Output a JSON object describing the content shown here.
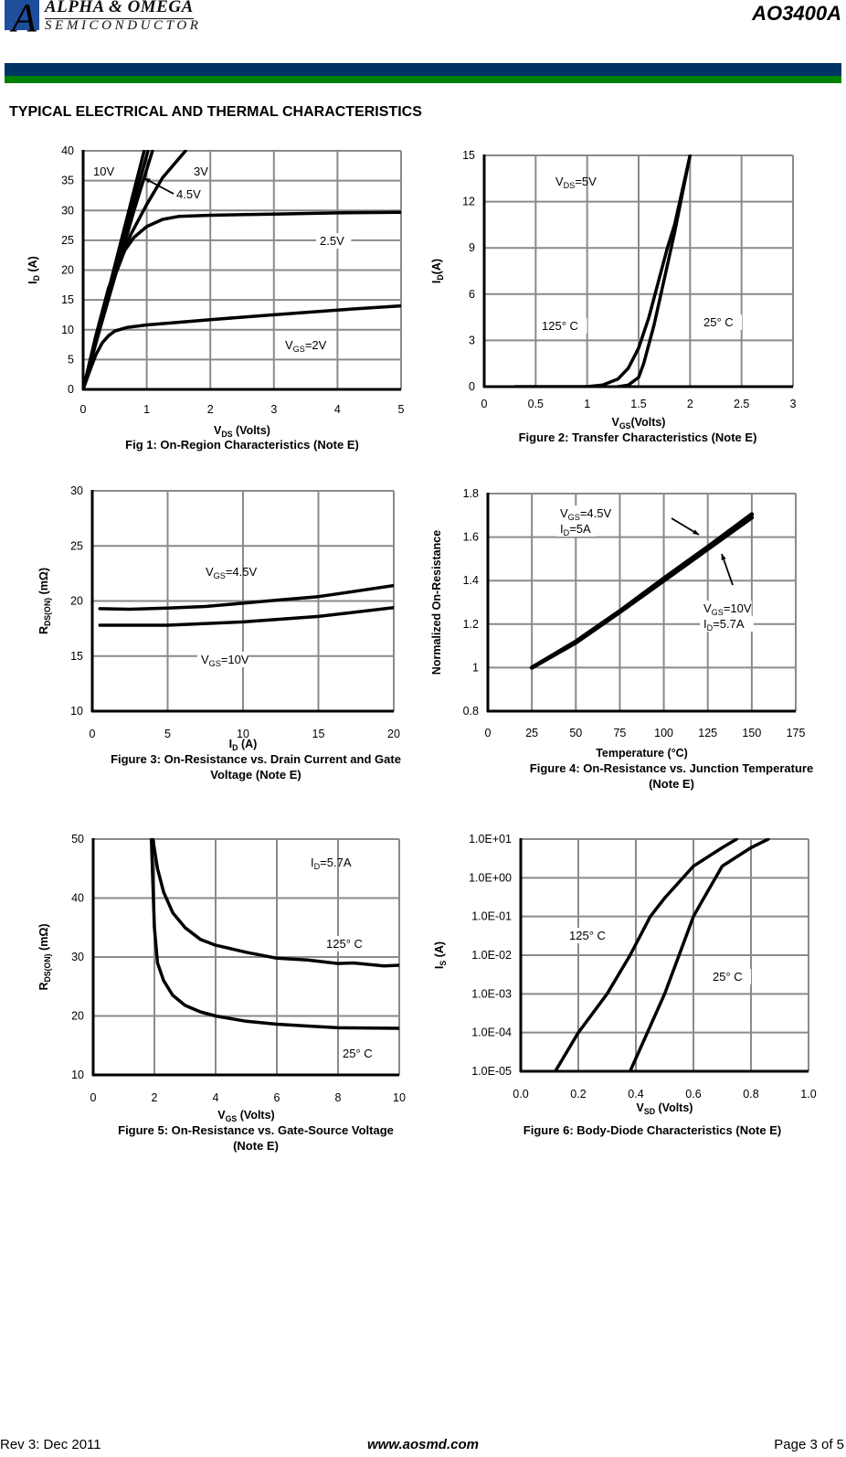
{
  "header": {
    "brand_line1": "ALPHA & OMEGA",
    "brand_line2": "SEMICONDUCTOR",
    "part_number": "AO3400A",
    "section_title": "TYPICAL ELECTRICAL AND THERMAL CHARACTERISTICS",
    "colors": {
      "bar_top": "#003366",
      "bar_bottom": "#008000",
      "logo": "#1f4e9c"
    }
  },
  "footer": {
    "revision": "Rev 3: Dec 2011",
    "website": "www.aosmd.com",
    "page": "Page 3 of 5"
  },
  "chart_data": [
    {
      "type": "line",
      "title": [
        "Fig 1: On-Region Characteristics (Note E)"
      ],
      "xlabel": {
        "pre": "V",
        "sub": "DS",
        "post": " (Volts)"
      },
      "ylabel": {
        "pre": "I",
        "sub": "D",
        "post": " (A)"
      },
      "xlim": [
        0,
        5
      ],
      "ylim": [
        0,
        40
      ],
      "yscale": "linear",
      "grid": true,
      "xticks": [
        "0",
        "1",
        "2",
        "3",
        "4",
        "5"
      ],
      "yticks": [
        "0",
        "5",
        "10",
        "15",
        "20",
        "25",
        "30",
        "35",
        "40"
      ],
      "annotations": [
        {
          "pre": "10V"
        },
        {
          "pre": "3V"
        },
        {
          "pre": "4.5V"
        },
        {
          "pre": "2.5V"
        },
        {
          "pre": "V",
          "sub": "GS",
          "post": "=2V"
        }
      ],
      "series": [
        {
          "points": [
            [
              0,
              0
            ],
            [
              0.24,
              10
            ],
            [
              0.48,
              20
            ],
            [
              0.72,
              30
            ],
            [
              0.96,
              40
            ]
          ]
        },
        {
          "points": [
            [
              0,
              0
            ],
            [
              0.25,
              10
            ],
            [
              0.5,
              20
            ],
            [
              0.76,
              30
            ],
            [
              1.02,
              40
            ]
          ]
        },
        {
          "points": [
            [
              0,
              0
            ],
            [
              0.26,
              10
            ],
            [
              0.53,
              20
            ],
            [
              0.8,
              30
            ],
            [
              1.09,
              40
            ]
          ]
        },
        {
          "points": [
            [
              0,
              0
            ],
            [
              0.25,
              10
            ],
            [
              0.5,
              19
            ],
            [
              0.75,
              26
            ],
            [
              1,
              31
            ],
            [
              1.25,
              35.5
            ],
            [
              1.61,
              40
            ]
          ]
        },
        {
          "points": [
            [
              0,
              0
            ],
            [
              0.2,
              9
            ],
            [
              0.4,
              17
            ],
            [
              0.6,
              22.5
            ],
            [
              0.8,
              25.5
            ],
            [
              1,
              27.3
            ],
            [
              1.25,
              28.5
            ],
            [
              1.5,
              29
            ],
            [
              2,
              29.2
            ],
            [
              3,
              29.4
            ],
            [
              4,
              29.6
            ],
            [
              5,
              29.7
            ]
          ]
        },
        {
          "points": [
            [
              0,
              0
            ],
            [
              0.1,
              3
            ],
            [
              0.2,
              5.8
            ],
            [
              0.3,
              7.8
            ],
            [
              0.4,
              9
            ],
            [
              0.5,
              9.8
            ],
            [
              0.7,
              10.4
            ],
            [
              1,
              10.8
            ],
            [
              2,
              11.7
            ],
            [
              3,
              12.5
            ],
            [
              4,
              13.3
            ],
            [
              5,
              14
            ]
          ]
        }
      ]
    },
    {
      "type": "line",
      "title": [
        "Figure 2: Transfer Characteristics (Note E)"
      ],
      "xlabel": {
        "pre": "V",
        "sub": "GS",
        "post": "(Volts)"
      },
      "ylabel": {
        "pre": "I",
        "sub": "D",
        "post": "(A)"
      },
      "xlim": [
        0,
        3
      ],
      "ylim": [
        0,
        15
      ],
      "yscale": "linear",
      "grid": true,
      "xticks": [
        "0",
        "0.5",
        "1",
        "1.5",
        "2",
        "2.5",
        "3"
      ],
      "yticks": [
        "0",
        "3",
        "6",
        "9",
        "12",
        "15"
      ],
      "annotations": [
        {
          "pre": "V",
          "sub": "DS",
          "post": "=5V"
        },
        {
          "pre": "125° C"
        },
        {
          "pre": "25° C"
        }
      ],
      "series": [
        {
          "points": [
            [
              0.3,
              0
            ],
            [
              1.0,
              0
            ],
            [
              1.15,
              0.1
            ],
            [
              1.3,
              0.5
            ],
            [
              1.4,
              1.2
            ],
            [
              1.5,
              2.5
            ],
            [
              1.6,
              4.5
            ],
            [
              1.7,
              7
            ],
            [
              1.78,
              9
            ],
            [
              1.85,
              10.5
            ],
            [
              2.0,
              15
            ]
          ]
        },
        {
          "points": [
            [
              1.3,
              0
            ],
            [
              1.4,
              0.1
            ],
            [
              1.5,
              0.6
            ],
            [
              1.55,
              1.5
            ],
            [
              1.65,
              4
            ],
            [
              1.75,
              7
            ],
            [
              1.85,
              10
            ],
            [
              2.0,
              15
            ]
          ]
        }
      ]
    },
    {
      "type": "line",
      "title": [
        "Figure 3: On-Resistance vs. Drain Current and Gate",
        "Voltage (Note E)"
      ],
      "xlabel": {
        "pre": "I",
        "sub": "D",
        "post": " (A)"
      },
      "ylabel": {
        "pre": "R",
        "sub": "DS(ON)",
        "post": " (mΩ)"
      },
      "xlim": [
        0,
        20
      ],
      "ylim": [
        10,
        30
      ],
      "yscale": "linear",
      "grid": true,
      "xticks": [
        "0",
        "5",
        "10",
        "15",
        "20"
      ],
      "yticks": [
        "10",
        "15",
        "20",
        "25",
        "30"
      ],
      "annotations": [
        {
          "pre": "V",
          "sub": "GS",
          "post": "=4.5V"
        },
        {
          "pre": "V",
          "sub": "GS",
          "post": "=10V"
        }
      ],
      "series": [
        {
          "points": [
            [
              0.5,
              19.3
            ],
            [
              2.5,
              19.25
            ],
            [
              5,
              19.35
            ],
            [
              7.5,
              19.5
            ],
            [
              10,
              19.8
            ],
            [
              12.5,
              20.1
            ],
            [
              15,
              20.4
            ],
            [
              17.5,
              20.9
            ],
            [
              20,
              21.4
            ]
          ]
        },
        {
          "points": [
            [
              0.5,
              17.8
            ],
            [
              5,
              17.8
            ],
            [
              10,
              18.1
            ],
            [
              15,
              18.6
            ],
            [
              20,
              19.4
            ]
          ]
        }
      ]
    },
    {
      "type": "line",
      "title": [
        "Figure 4: On-Resistance vs. Junction Temperature",
        "(Note E)"
      ],
      "xlabel": {
        "pre": "Temperature (°C)"
      },
      "ylabel": {
        "pre": "Normalized On-Resistance"
      },
      "xlim": [
        0,
        175
      ],
      "ylim": [
        0.8,
        1.8
      ],
      "yscale": "linear",
      "grid": true,
      "xticks": [
        "0",
        "25",
        "50",
        "75",
        "100",
        "125",
        "150",
        "175"
      ],
      "yticks": [
        "0.8",
        "1",
        "1.2",
        "1.4",
        "1.6",
        "1.8"
      ],
      "annotations": [
        {
          "pre": "V",
          "sub": "GS",
          "post": "=4.5V"
        },
        {
          "pre": "I",
          "sub": "D",
          "post": "=5A"
        },
        {
          "pre": "V",
          "sub": "GS",
          "post": "=10V"
        },
        {
          "pre": "I",
          "sub": "D",
          "post": "=5.7A"
        }
      ],
      "series": [
        {
          "points": [
            [
              25,
              1.0
            ],
            [
              50,
              1.12
            ],
            [
              75,
              1.26
            ],
            [
              100,
              1.41
            ],
            [
              125,
              1.555
            ],
            [
              150,
              1.705
            ]
          ]
        },
        {
          "points": [
            [
              25,
              1.0
            ],
            [
              50,
              1.115
            ],
            [
              75,
              1.255
            ],
            [
              100,
              1.4
            ],
            [
              125,
              1.545
            ],
            [
              150,
              1.69
            ]
          ]
        }
      ]
    },
    {
      "type": "line",
      "title": [
        "Figure 5: On-Resistance vs. Gate-Source Voltage",
        "(Note E)"
      ],
      "xlabel": {
        "pre": "V",
        "sub": "GS",
        "post": " (Volts)"
      },
      "ylabel": {
        "pre": "R",
        "sub": "DS(ON)",
        "post": " (mΩ)"
      },
      "xlim": [
        0,
        10
      ],
      "ylim": [
        10,
        50
      ],
      "yscale": "linear",
      "grid": true,
      "xticks": [
        "0",
        "2",
        "4",
        "6",
        "8",
        "10"
      ],
      "yticks": [
        "10",
        "20",
        "30",
        "40",
        "50"
      ],
      "annotations": [
        {
          "pre": "I",
          "sub": "D",
          "post": "=5.7A"
        },
        {
          "pre": "125° C"
        },
        {
          "pre": "25° C"
        }
      ],
      "series": [
        {
          "points": [
            [
              1.95,
              50
            ],
            [
              2.1,
              45
            ],
            [
              2.3,
              41
            ],
            [
              2.6,
              37.5
            ],
            [
              3,
              35
            ],
            [
              3.5,
              33
            ],
            [
              4,
              32
            ],
            [
              5,
              30.8
            ],
            [
              6,
              29.8
            ],
            [
              7,
              29.5
            ],
            [
              8,
              28.9
            ],
            [
              8.5,
              29
            ],
            [
              9.5,
              28.5
            ],
            [
              10,
              28.6
            ]
          ]
        },
        {
          "points": [
            [
              1.9,
              50
            ],
            [
              2.0,
              35
            ],
            [
              2.1,
              29
            ],
            [
              2.3,
              26
            ],
            [
              2.6,
              23.5
            ],
            [
              3,
              21.8
            ],
            [
              3.5,
              20.7
            ],
            [
              4,
              20
            ],
            [
              5,
              19.1
            ],
            [
              6,
              18.6
            ],
            [
              7,
              18.3
            ],
            [
              8,
              18
            ],
            [
              10,
              17.9
            ]
          ]
        }
      ]
    },
    {
      "type": "line",
      "title": [
        "Figure 6: Body-Diode Characteristics (Note E)"
      ],
      "xlabel": {
        "pre": "V",
        "sub": "SD",
        "post": " (Volts)"
      },
      "ylabel": {
        "pre": "I",
        "sub": "S",
        "post": " (A)"
      },
      "xlim": [
        0,
        1
      ],
      "ylim": [
        1e-05,
        10
      ],
      "yscale": "log",
      "grid": true,
      "xticks": [
        "0.0",
        "0.2",
        "0.4",
        "0.6",
        "0.8",
        "1.0"
      ],
      "yticks": [
        "1.0E-05",
        "1.0E-04",
        "1.0E-03",
        "1.0E-02",
        "1.0E-01",
        "1.0E+00",
        "1.0E+01"
      ],
      "annotations": [
        {
          "pre": "125° C"
        },
        {
          "pre": "25° C"
        }
      ],
      "series": [
        {
          "points": [
            [
              0.12,
              1e-05
            ],
            [
              0.2,
              0.0001
            ],
            [
              0.3,
              0.001
            ],
            [
              0.38,
              0.01
            ],
            [
              0.45,
              0.1
            ],
            [
              0.5,
              0.3
            ],
            [
              0.6,
              2
            ],
            [
              0.7,
              6
            ],
            [
              0.75,
              10
            ]
          ]
        },
        {
          "points": [
            [
              0.38,
              1e-05
            ],
            [
              0.44,
              0.0001
            ],
            [
              0.5,
              0.001
            ],
            [
              0.55,
              0.01
            ],
            [
              0.6,
              0.1
            ],
            [
              0.63,
              0.25
            ],
            [
              0.7,
              2
            ],
            [
              0.8,
              6
            ],
            [
              0.86,
              10
            ]
          ]
        }
      ]
    }
  ]
}
